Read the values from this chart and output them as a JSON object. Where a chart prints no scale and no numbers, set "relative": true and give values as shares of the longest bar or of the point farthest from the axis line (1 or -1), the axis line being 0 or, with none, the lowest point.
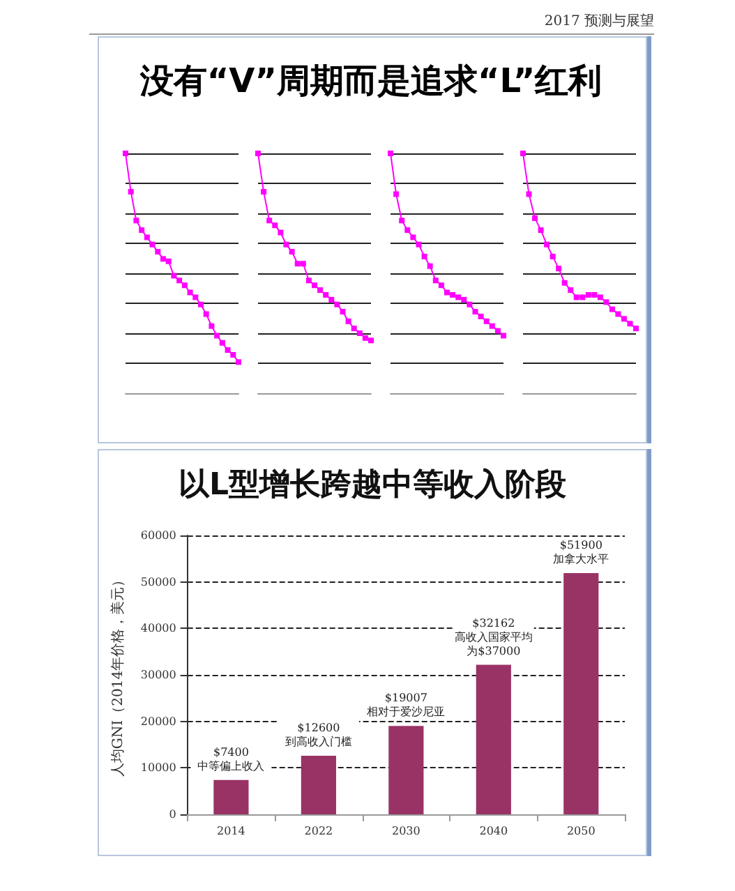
{
  "chart_data": [
    {
      "type": "line",
      "title": "没有“V”周期而是追求“L”红利",
      "annotations": [
        "2017 预测与展望"
      ],
      "relative": true,
      "grid": "y",
      "marker": "square",
      "categories": [
        null,
        null,
        null,
        null,
        null,
        null,
        null,
        null,
        null,
        null,
        null,
        null,
        null,
        null,
        null,
        null,
        null,
        null,
        null,
        null,
        null,
        null
      ],
      "series": [
        {
          "color": "#ff00ff",
          "values": [
            1.0,
            0.84,
            0.72,
            0.68,
            0.65,
            0.62,
            0.59,
            0.56,
            0.55,
            0.49,
            0.47,
            0.45,
            0.42,
            0.4,
            0.37,
            0.33,
            0.28,
            0.24,
            0.21,
            0.18,
            0.16,
            0.13
          ]
        }
      ]
    },
    {
      "type": "line",
      "relative": true,
      "grid": "y",
      "marker": "square",
      "categories": [
        null,
        null,
        null,
        null,
        null,
        null,
        null,
        null,
        null,
        null,
        null,
        null,
        null,
        null,
        null,
        null,
        null,
        null,
        null,
        null,
        null
      ],
      "series": [
        {
          "color": "#ff00ff",
          "values": [
            1.0,
            0.84,
            0.72,
            0.7,
            0.67,
            0.62,
            0.59,
            0.54,
            0.54,
            0.47,
            0.45,
            0.43,
            0.41,
            0.39,
            0.37,
            0.34,
            0.3,
            0.27,
            0.25,
            0.23,
            0.22
          ]
        }
      ]
    },
    {
      "type": "line",
      "relative": true,
      "grid": "y",
      "marker": "square",
      "categories": [
        null,
        null,
        null,
        null,
        null,
        null,
        null,
        null,
        null,
        null,
        null,
        null,
        null,
        null,
        null,
        null,
        null,
        null,
        null,
        null,
        null
      ],
      "series": [
        {
          "color": "#ff00ff",
          "values": [
            1.0,
            0.83,
            0.72,
            0.68,
            0.65,
            0.62,
            0.57,
            0.53,
            0.47,
            0.45,
            0.42,
            0.41,
            0.4,
            0.39,
            0.37,
            0.34,
            0.32,
            0.3,
            0.28,
            0.26,
            0.24
          ]
        }
      ]
    },
    {
      "type": "line",
      "relative": true,
      "grid": "y",
      "marker": "square",
      "categories": [
        null,
        null,
        null,
        null,
        null,
        null,
        null,
        null,
        null,
        null,
        null,
        null,
        null,
        null,
        null,
        null,
        null,
        null,
        null,
        null
      ],
      "series": [
        {
          "color": "#ff00ff",
          "values": [
            1.0,
            0.83,
            0.73,
            0.68,
            0.62,
            0.57,
            0.52,
            0.46,
            0.43,
            0.4,
            0.4,
            0.41,
            0.41,
            0.4,
            0.38,
            0.35,
            0.33,
            0.31,
            0.29,
            0.27
          ]
        }
      ]
    },
    {
      "type": "bar",
      "title": "以L型增长跨越中等收入阶段",
      "ylabel": "人均GNI（2014年价格，美元）",
      "categories": [
        "2014",
        "2022",
        "2030",
        "2040",
        "2050"
      ],
      "grid": "y",
      "series": [
        {
          "color": "#993366",
          "values": [
            7400,
            12600,
            19007,
            32162,
            51900
          ],
          "value_labels": [
            "$7400\n中等偏上收入",
            "$12600\n到高收入门槛",
            "$19007\n相对于爱沙尼亚",
            "$32162\n高收入国家平均为$37000",
            "$51900\n加拿大水平"
          ]
        }
      ],
      "ylim": [
        0,
        60000
      ],
      "yticks": [
        0,
        10000,
        20000,
        30000,
        40000,
        50000,
        60000
      ]
    }
  ]
}
